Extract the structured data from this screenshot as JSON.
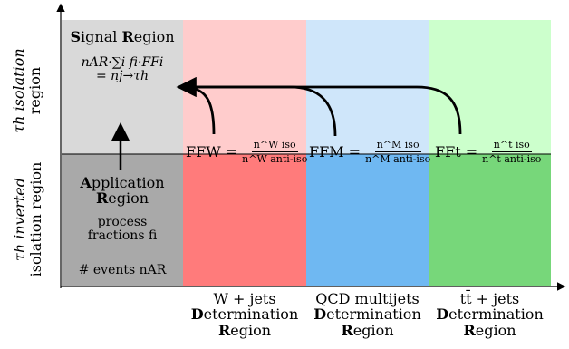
{
  "colors": {
    "signal_bg": "#d9d9d9",
    "application_bg": "#a9a9a9",
    "w_top": "#ffcccc",
    "w_bottom": "#ff7b7b",
    "qcd_top": "#cfe6fa",
    "qcd_bottom": "#6fb8f2",
    "tt_top": "#ccffcc",
    "tt_bottom": "#77d77a"
  },
  "y_axis": {
    "upper_label_line1": "τh isolation",
    "upper_label_line2": "region",
    "lower_label_line1": "τh inverted",
    "lower_label_line2": "isolation region"
  },
  "signal_region": {
    "title_first_bold": "S",
    "title_rest1": "ignal ",
    "title_bold2": "R",
    "title_rest2": "egion",
    "formula_line1": "nAR·∑i fi·FFi",
    "formula_line2": "= nj→τh"
  },
  "application_region": {
    "title_bold1": "A",
    "title_rest1": "pplication",
    "title_bold2": "R",
    "title_rest2": "egion",
    "process_line1": "process",
    "process_line2": "fractions fi",
    "events": "# events nAR"
  },
  "fake_factors": [
    {
      "label": "FFW =",
      "numerator": "n^W iso",
      "denominator": "n^W anti-iso"
    },
    {
      "label": "FFM =",
      "numerator": "n^M iso",
      "denominator": "n^M anti-iso"
    },
    {
      "label": "FFt =",
      "numerator": "n^t iso",
      "denominator": "n^t anti-iso"
    }
  ],
  "determination_regions": [
    {
      "process": "W + jets",
      "line2_bold": "D",
      "line2_rest": "etermination",
      "line3_bold": "R",
      "line3_rest": "egion"
    },
    {
      "process": "QCD multijets",
      "line2_bold": "D",
      "line2_rest": "etermination",
      "line3_bold": "R",
      "line3_rest": "egion"
    },
    {
      "process": "tt̄ + jets",
      "line2_bold": "D",
      "line2_rest": "etermination",
      "line3_bold": "R",
      "line3_rest": "egion"
    }
  ]
}
